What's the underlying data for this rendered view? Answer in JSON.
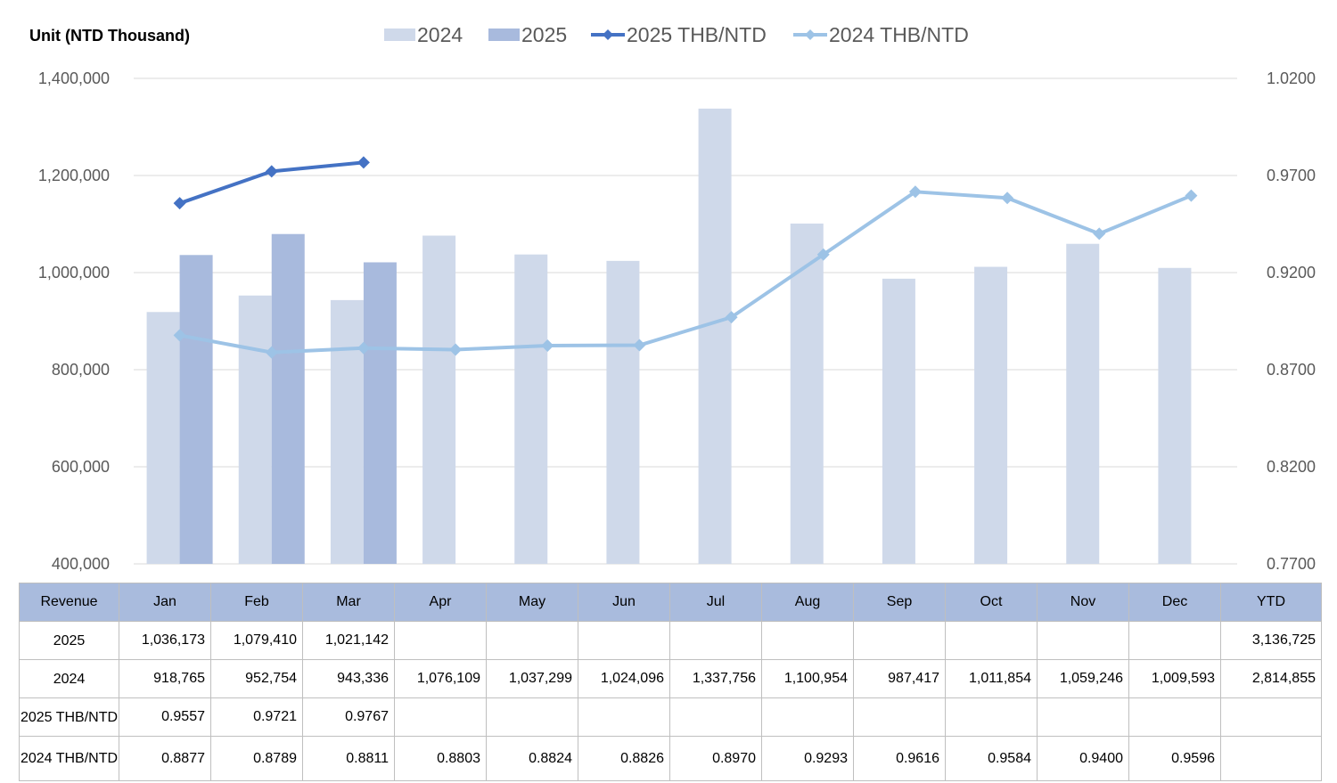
{
  "unit_label": "Unit (NTD  Thousand)",
  "legend": [
    {
      "label": "2024",
      "kind": "bar",
      "color": "#cfd9ea"
    },
    {
      "label": "2025",
      "kind": "bar",
      "color": "#a8badd"
    },
    {
      "label": "2025 THB/NTD",
      "kind": "line",
      "color": "#4472c4"
    },
    {
      "label": "2024 THB/NTD",
      "kind": "line",
      "color": "#9dc3e6"
    }
  ],
  "chart_data": {
    "type": "bar",
    "categories": [
      "Jan",
      "Feb",
      "Mar",
      "Apr",
      "May",
      "Jun",
      "Jul",
      "Aug",
      "Sep",
      "Oct",
      "Nov",
      "Dec"
    ],
    "series": [
      {
        "name": "2024",
        "type": "bar",
        "axis": "left",
        "values": [
          918765,
          952754,
          943336,
          1076109,
          1037299,
          1024096,
          1337756,
          1100954,
          987417,
          1011854,
          1059246,
          1009593
        ]
      },
      {
        "name": "2025",
        "type": "bar",
        "axis": "left",
        "values": [
          1036173,
          1079410,
          1021142,
          null,
          null,
          null,
          null,
          null,
          null,
          null,
          null,
          null
        ]
      },
      {
        "name": "2025 THB/NTD",
        "type": "line",
        "axis": "right",
        "values": [
          0.9557,
          0.9721,
          0.9767,
          null,
          null,
          null,
          null,
          null,
          null,
          null,
          null,
          null
        ]
      },
      {
        "name": "2024 THB/NTD",
        "type": "line",
        "axis": "right",
        "values": [
          0.8877,
          0.8789,
          0.8811,
          0.8803,
          0.8824,
          0.8826,
          0.897,
          0.9293,
          0.9616,
          0.9584,
          0.94,
          0.9596
        ]
      }
    ],
    "ylim": [
      400000,
      1400000
    ],
    "y2lim": [
      0.77,
      1.02
    ],
    "yticks": [
      "400,000",
      "600,000",
      "800,000",
      "1,000,000",
      "1,200,000",
      "1,400,000"
    ],
    "y2ticks": [
      "0.7700",
      "0.8200",
      "0.8700",
      "0.9200",
      "0.9700",
      "1.0200"
    ],
    "grid": true,
    "legend_position": "top-center"
  },
  "table": {
    "header": [
      "Revenue",
      "Jan",
      "Feb",
      "Mar",
      "Apr",
      "May",
      "Jun",
      "Jul",
      "Aug",
      "Sep",
      "Oct",
      "Nov",
      "Dec",
      "YTD"
    ],
    "rows": [
      {
        "label": "2025",
        "cells": [
          "1,036,173",
          "1,079,410",
          "1,021,142",
          "",
          "",
          "",
          "",
          "",
          "",
          "",
          "",
          "",
          "3,136,725"
        ]
      },
      {
        "label": "2024",
        "cells": [
          "918,765",
          "952,754",
          "943,336",
          "1,076,109",
          "1,037,299",
          "1,024,096",
          "1,337,756",
          "1,100,954",
          "987,417",
          "1,011,854",
          "1,059,246",
          "1,009,593",
          "2,814,855"
        ]
      },
      {
        "label": "2025 THB/NTD",
        "cells": [
          "0.9557",
          "0.9721",
          "0.9767",
          "",
          "",
          "",
          "",
          "",
          "",
          "",
          "",
          "",
          ""
        ]
      },
      {
        "label": "2024 THB/NTD",
        "cells": [
          "0.8877",
          "0.8789",
          "0.8811",
          "0.8803",
          "0.8824",
          "0.8826",
          "0.8970",
          "0.9293",
          "0.9616",
          "0.9584",
          "0.9400",
          "0.9596",
          ""
        ]
      }
    ]
  }
}
